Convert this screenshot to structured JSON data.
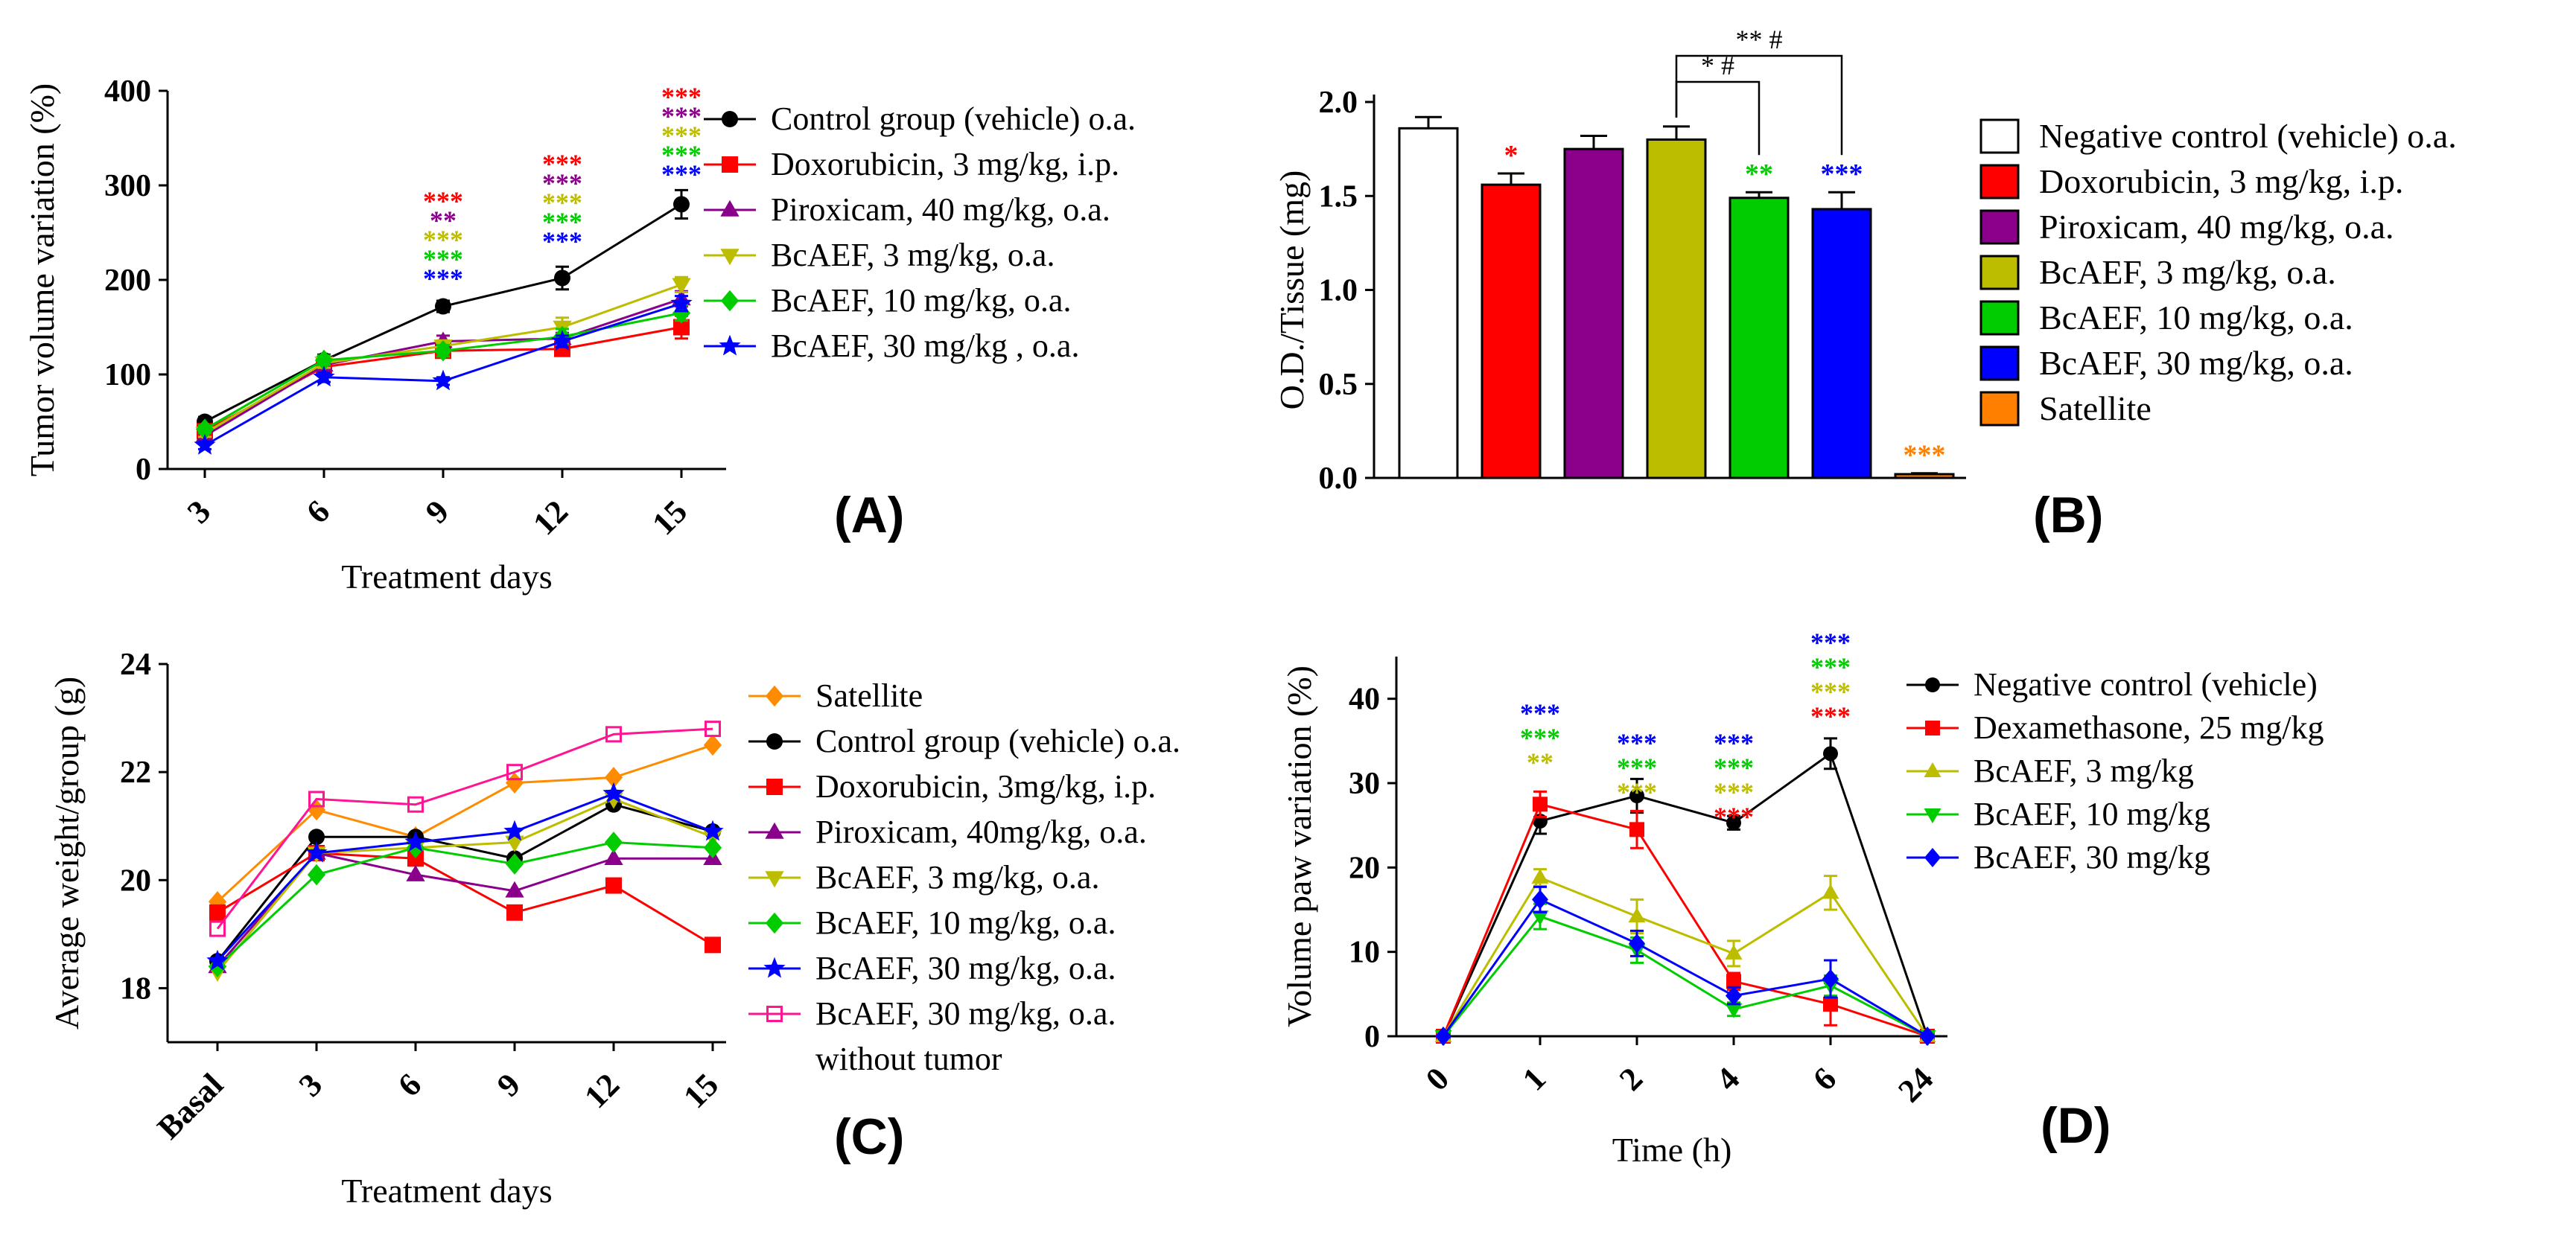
{
  "chart_data": [
    {
      "id": "A",
      "type": "line",
      "panel_label": "(A)",
      "xlabel": "Treatment days",
      "ylabel": "Tumor volume variation (%)",
      "categories": [
        "3",
        "6",
        "9",
        "12",
        "15"
      ],
      "yticks": [
        "0",
        "100",
        "200",
        "300",
        "400"
      ],
      "ylim": [
        0,
        400
      ],
      "legend": "right",
      "series": [
        {
          "name": "Control group (vehicle) o.a.",
          "color": "#000000",
          "marker": "circle",
          "values": [
            50,
            115,
            172,
            202,
            280
          ],
          "err": [
            5,
            6,
            6,
            12,
            15
          ]
        },
        {
          "name": "Doxorubicin, 3 mg/kg, i.p.",
          "color": "#ff0000",
          "marker": "square",
          "values": [
            40,
            108,
            125,
            127,
            150
          ],
          "err": [
            4,
            5,
            6,
            6,
            12
          ]
        },
        {
          "name": "Piroxicam, 40 mg/kg, o.a.",
          "color": "#8b008b",
          "marker": "triangle",
          "values": [
            35,
            110,
            135,
            138,
            180
          ],
          "err": [
            4,
            5,
            6,
            6,
            8
          ]
        },
        {
          "name": "BcAEF, 3 mg/kg, o.a.",
          "color": "#bdbd00",
          "marker": "triangle-down",
          "values": [
            38,
            112,
            130,
            150,
            195
          ],
          "err": [
            4,
            5,
            6,
            10,
            8
          ]
        },
        {
          "name": "BcAEF, 10 mg/kg, o.a.",
          "color": "#00cc00",
          "marker": "diamond",
          "values": [
            42,
            115,
            125,
            140,
            165
          ],
          "err": [
            4,
            5,
            6,
            8,
            8
          ]
        },
        {
          "name": "BcAEF, 30 mg/kg , o.a.",
          "color": "#0000ff",
          "marker": "star",
          "values": [
            25,
            97,
            93,
            135,
            175
          ],
          "err": [
            4,
            5,
            4,
            6,
            8
          ]
        }
      ],
      "annotations": [
        {
          "x": "9",
          "stars": [
            "***",
            "**",
            "***",
            "***",
            "***"
          ],
          "colors": [
            "#ff0000",
            "#8b008b",
            "#bdbd00",
            "#00cc00",
            "#0000ff"
          ]
        },
        {
          "x": "12",
          "stars": [
            "***",
            "***",
            "***",
            "***",
            "***"
          ],
          "colors": [
            "#ff0000",
            "#8b008b",
            "#bdbd00",
            "#00cc00",
            "#0000ff"
          ]
        },
        {
          "x": "15",
          "stars": [
            "***",
            "***",
            "***",
            "***",
            "***"
          ],
          "colors": [
            "#ff0000",
            "#8b008b",
            "#bdbd00",
            "#00cc00",
            "#0000ff"
          ]
        }
      ]
    },
    {
      "id": "B",
      "type": "bar",
      "panel_label": "(B)",
      "xlabel": "",
      "ylabel": "O.D./Tissue (mg)",
      "yticks": [
        "0.0",
        "0.5",
        "1.0",
        "1.5",
        "2.0"
      ],
      "ylim": [
        0,
        2.0
      ],
      "legend": "right",
      "series": [
        {
          "name": "Negative control (vehicle) o.a.",
          "color": "#ffffff",
          "value": 1.86,
          "err": 0.06,
          "star": ""
        },
        {
          "name": "Doxorubicin, 3 mg/kg, i.p.",
          "color": "#ff0000",
          "value": 1.56,
          "err": 0.06,
          "star": "*"
        },
        {
          "name": "Piroxicam, 40 mg/kg, o.a.",
          "color": "#8b008b",
          "value": 1.75,
          "err": 0.07,
          "star": ""
        },
        {
          "name": "BcAEF, 3 mg/kg, o.a.",
          "color": "#bdbd00",
          "value": 1.8,
          "err": 0.07,
          "star": ""
        },
        {
          "name": "BcAEF, 10 mg/kg, o.a.",
          "color": "#00cc00",
          "value": 1.49,
          "err": 0.03,
          "star": "**"
        },
        {
          "name": "BcAEF, 30 mg/kg, o.a.",
          "color": "#0000ff",
          "value": 1.43,
          "err": 0.09,
          "star": "***"
        },
        {
          "name": "Satellite",
          "color": "#ff8000",
          "value": 0.02,
          "err": 0.005,
          "star": "***"
        }
      ],
      "brackets": [
        {
          "from": 3,
          "to": 4,
          "label": "* #"
        },
        {
          "from": 3,
          "to": 5,
          "label": "** #"
        }
      ]
    },
    {
      "id": "C",
      "type": "line",
      "panel_label": "(C)",
      "xlabel": "Treatment days",
      "ylabel": "Average weight/group (g)",
      "categories": [
        "Basal",
        "3",
        "6",
        "9",
        "12",
        "15"
      ],
      "yticks": [
        "18",
        "20",
        "22",
        "24"
      ],
      "ylim": [
        17,
        24
      ],
      "legend": "right",
      "series": [
        {
          "name": "Satellite",
          "color": "#ff8c00",
          "marker": "diamond",
          "values": [
            19.6,
            21.3,
            20.8,
            21.8,
            21.9,
            22.5
          ]
        },
        {
          "name": "Control group (vehicle) o.a.",
          "color": "#000000",
          "marker": "circle",
          "values": [
            18.5,
            20.8,
            20.8,
            20.4,
            21.4,
            20.9
          ]
        },
        {
          "name": "Doxorubicin, 3mg/kg, i.p.",
          "color": "#ff0000",
          "marker": "square",
          "values": [
            19.4,
            20.5,
            20.4,
            19.4,
            19.9,
            18.8
          ]
        },
        {
          "name": "Piroxicam, 40mg/kg, o.a.",
          "color": "#8b008b",
          "marker": "triangle",
          "values": [
            18.4,
            20.5,
            20.1,
            19.8,
            20.4,
            20.4
          ]
        },
        {
          "name": "BcAEF, 3 mg/kg, o.a.",
          "color": "#bdbd00",
          "marker": "triangle-down",
          "values": [
            18.3,
            20.5,
            20.6,
            20.7,
            21.5,
            20.8
          ]
        },
        {
          "name": "BcAEF, 10 mg/kg, o.a.",
          "color": "#00cc00",
          "marker": "diamond",
          "values": [
            18.4,
            20.1,
            20.6,
            20.3,
            20.7,
            20.6
          ]
        },
        {
          "name": "BcAEF, 30 mg/kg, o.a.",
          "color": "#0000ff",
          "marker": "star",
          "values": [
            18.5,
            20.5,
            20.7,
            20.9,
            21.6,
            20.9
          ]
        },
        {
          "name": "BcAEF, 30 mg/kg, o.a.",
          "color": "#ff1493",
          "marker": "square-open",
          "values": [
            19.1,
            21.5,
            21.4,
            22.0,
            22.7,
            22.8
          ]
        }
      ],
      "legend_extra_line": "without tumor"
    },
    {
      "id": "D",
      "type": "line",
      "panel_label": "(D)",
      "xlabel": "Time (h)",
      "ylabel": "Volume paw variation (%)",
      "categories": [
        "0",
        "1",
        "2",
        "4",
        "6",
        "24"
      ],
      "yticks": [
        "0",
        "10",
        "20",
        "30",
        "40"
      ],
      "ylim": [
        0,
        45
      ],
      "legend": "right",
      "series": [
        {
          "name": "Negative control (vehicle)",
          "color": "#000000",
          "marker": "circle",
          "values": [
            0,
            25.5,
            28.5,
            25.3,
            33.5,
            0
          ],
          "err": [
            0,
            1.5,
            2,
            0.8,
            1.8,
            0
          ]
        },
        {
          "name": "Dexamethasone, 25 mg/kg",
          "color": "#ff0000",
          "marker": "square",
          "values": [
            0,
            27.5,
            24.5,
            6.5,
            3.8,
            0
          ],
          "err": [
            0,
            1.5,
            2.2,
            1,
            2.5,
            0
          ]
        },
        {
          "name": "BcAEF, 3 mg/kg",
          "color": "#bdbd00",
          "marker": "triangle",
          "values": [
            0,
            18.8,
            14.2,
            9.8,
            17.0,
            0
          ],
          "err": [
            0,
            1,
            2,
            1.5,
            2,
            0
          ]
        },
        {
          "name": "BcAEF, 10 mg/kg",
          "color": "#00cc00",
          "marker": "triangle-down",
          "values": [
            0,
            14.2,
            10.2,
            3.2,
            6.0,
            0
          ],
          "err": [
            0,
            1.5,
            1.5,
            0.8,
            1.2,
            0
          ]
        },
        {
          "name": "BcAEF, 30 mg/kg",
          "color": "#0000ff",
          "marker": "diamond",
          "values": [
            0,
            16.2,
            11.0,
            4.8,
            6.8,
            0
          ],
          "err": [
            0,
            1.5,
            1.5,
            1,
            2.2,
            0
          ]
        }
      ],
      "annotations": [
        {
          "x": "1",
          "stars": [
            "***",
            "***",
            "**"
          ],
          "colors": [
            "#0000ff",
            "#00cc00",
            "#bdbd00"
          ]
        },
        {
          "x": "2",
          "stars": [
            "***",
            "***",
            "***"
          ],
          "colors": [
            "#0000ff",
            "#00cc00",
            "#bdbd00"
          ]
        },
        {
          "x": "4",
          "stars": [
            "***",
            "***",
            "***",
            "***"
          ],
          "colors": [
            "#0000ff",
            "#00cc00",
            "#bdbd00",
            "#ff0000"
          ]
        },
        {
          "x": "6",
          "stars": [
            "***",
            "***",
            "***",
            "***"
          ],
          "colors": [
            "#0000ff",
            "#00cc00",
            "#bdbd00",
            "#ff0000"
          ]
        }
      ]
    }
  ]
}
